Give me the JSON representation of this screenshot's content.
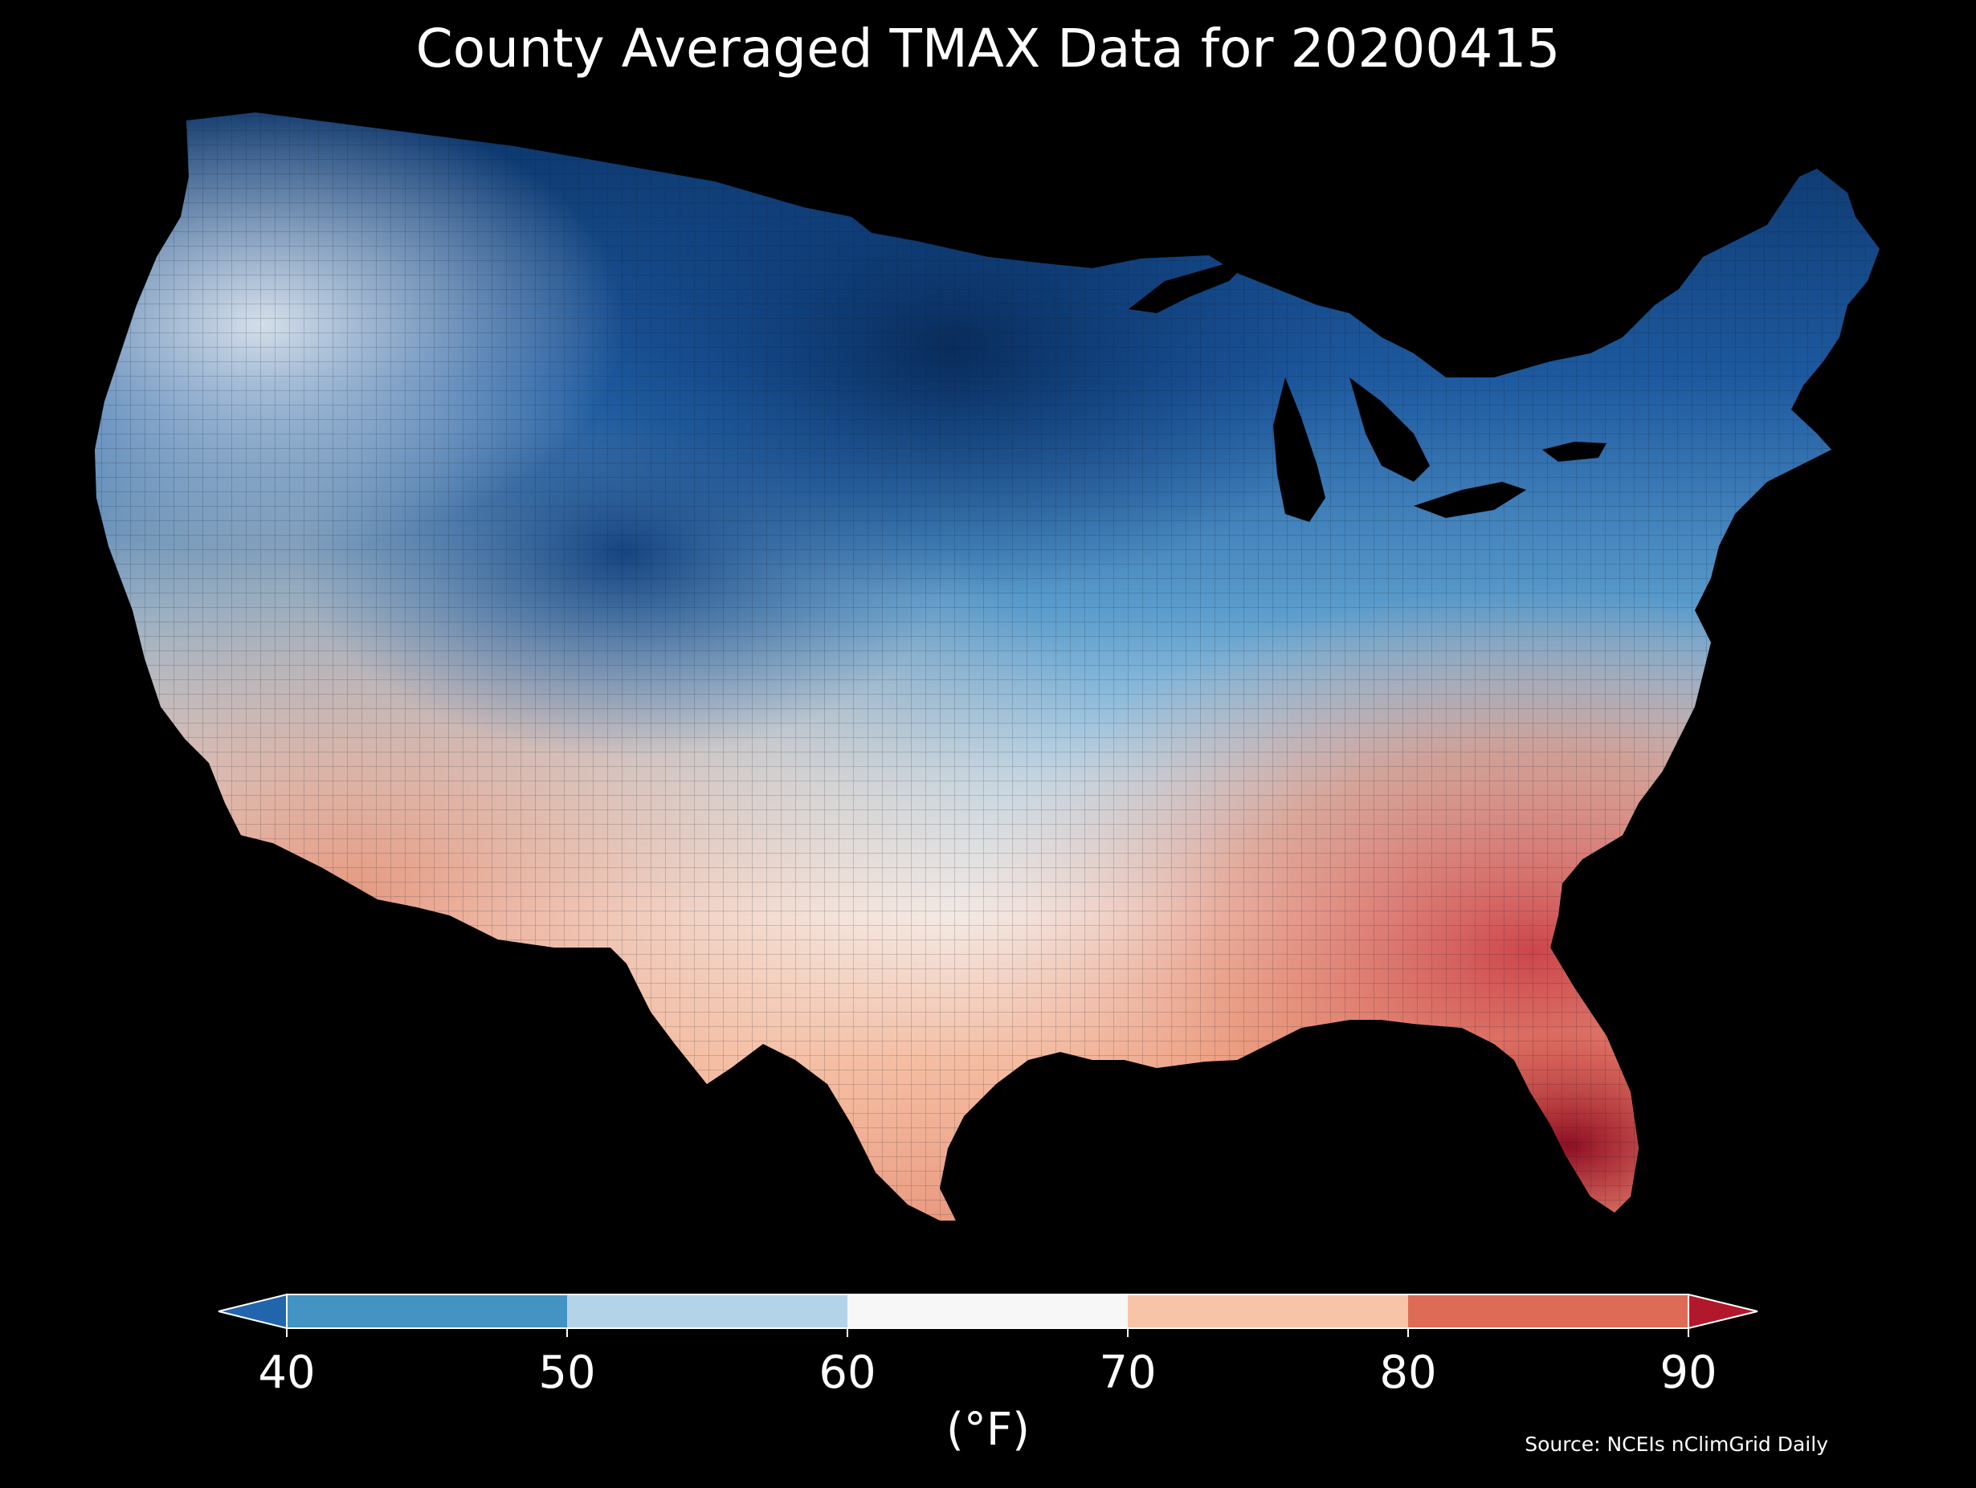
{
  "title": "County Averaged TMAX Data for 20200415",
  "colorbar": {
    "ticks": [
      "40",
      "50",
      "60",
      "70",
      "80",
      "90"
    ],
    "bins": [
      {
        "range": "<40",
        "color": "#2166ac"
      },
      {
        "range": "40-50",
        "color": "#4393c3"
      },
      {
        "range": "50-60",
        "color": "#b3d4e8"
      },
      {
        "range": "60-70",
        "color": "#f7f7f7"
      },
      {
        "range": "70-80",
        "color": "#f7c4a8"
      },
      {
        "range": "80-90",
        "color": "#de6b55"
      },
      {
        "range": ">90",
        "color": "#b2182b"
      }
    ],
    "units": "(°F)"
  },
  "source": "Source: NCEIs nClimGrid Daily",
  "map": {
    "region": "contiguous United States counties",
    "variable": "TMAX",
    "background_color": "#000000",
    "gradient_colors": {
      "deep_blue": "#0a3266",
      "blue": "#3a7fc1",
      "light_blue": "#bcd8ea",
      "white": "#f2f4f6",
      "salmon": "#f4b89c",
      "red": "#dc6a52",
      "dark_red": "#a31226"
    }
  }
}
